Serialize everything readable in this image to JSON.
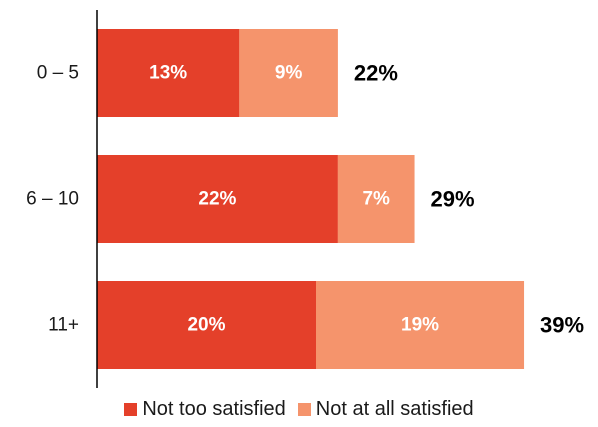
{
  "chart_data": {
    "type": "bar",
    "orientation": "horizontal",
    "stacked": true,
    "categories": [
      "0 – 5",
      "6 – 10",
      "11+"
    ],
    "series": [
      {
        "name": "Not too satisfied",
        "values": [
          13,
          22,
          20
        ],
        "labels": [
          "13%",
          "22%",
          "20%"
        ],
        "color": "#e4402a"
      },
      {
        "name": "Not at all satisfied",
        "values": [
          9,
          7,
          19
        ],
        "labels": [
          "9%",
          "7%",
          "19%"
        ],
        "color": "#f5946c"
      }
    ],
    "totals": [
      22,
      29,
      39
    ],
    "total_labels": [
      "22%",
      "29%",
      "39%"
    ],
    "xlim": [
      0,
      40
    ],
    "grid": false,
    "legend_position": "bottom"
  }
}
